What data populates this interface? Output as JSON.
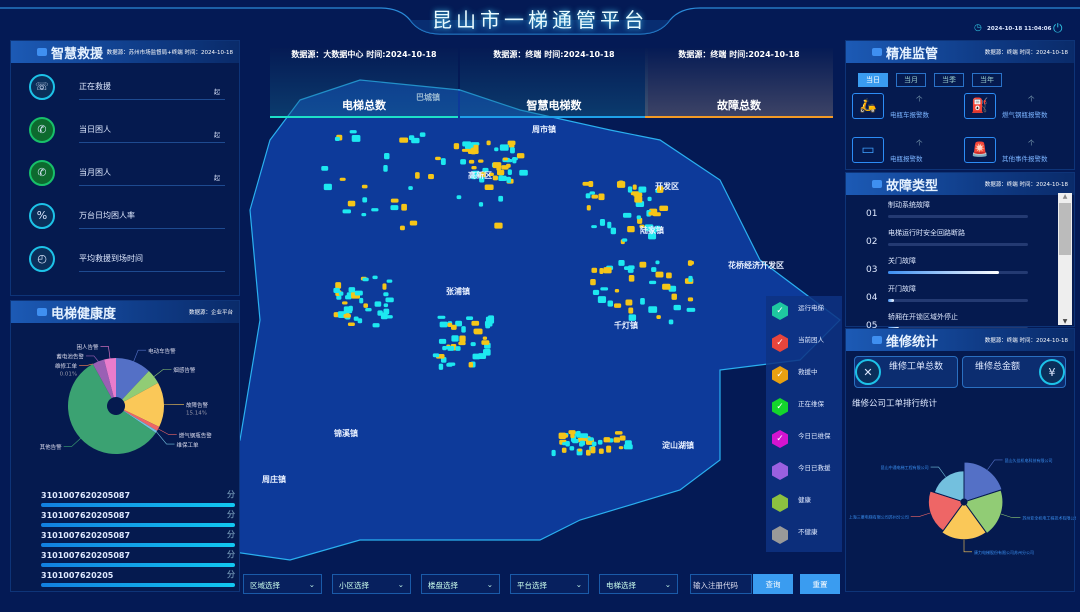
{
  "header": {
    "title": "昆山市一梯通管平台",
    "datetime": "2024-10-18 11:04:06",
    "clock_icon": "clock-icon",
    "power_icon": "power-icon"
  },
  "kpis": [
    {
      "source": "数据源：大数据中心 时间:2024-10-18",
      "label": "电梯总数",
      "color": "#1de0c8"
    },
    {
      "source": "数据源：终端 时间:2024-10-18",
      "label": "智慧电梯数",
      "color": "#1fa0e8"
    },
    {
      "source": "数据源：终端 时间:2024-10-18",
      "label": "故障总数",
      "color": "#f39a25"
    }
  ],
  "rescue": {
    "title": "智慧救援",
    "source": "数据源：苏州市场监督局+终端 时间：2024-10-18",
    "items": [
      {
        "label": "正在救援",
        "unit": "起",
        "icon": "rescue-icon"
      },
      {
        "label": "当日困人",
        "unit": "起",
        "icon": "phone-icon"
      },
      {
        "label": "当月困人",
        "unit": "起",
        "icon": "phone-icon"
      },
      {
        "label": "万台日均困人率",
        "unit": "",
        "icon": "percent-icon"
      },
      {
        "label": "平均救援到场时间",
        "unit": "",
        "icon": "stopwatch-icon"
      }
    ]
  },
  "health": {
    "title": "电梯健康度",
    "source": "数据源：企业平台",
    "rows": [
      {
        "code": "3101007620205087"
      },
      {
        "code": "3101007620205087"
      },
      {
        "code": "3101007620205087"
      },
      {
        "code": "3101007620205087"
      },
      {
        "code": "3101007620205"
      }
    ],
    "score_unit": "分"
  },
  "chart_data": [
    {
      "type": "pie",
      "title": "",
      "slices": [
        {
          "name": "电动车告警",
          "value": 12,
          "color": "#5470c6"
        },
        {
          "name": "烟感告警",
          "value": 5,
          "color": "#91cc75"
        },
        {
          "name": "故障告警",
          "value": 15.14,
          "label": "15.14%",
          "color": "#fac858"
        },
        {
          "name": "燃气钢瓶告警",
          "value": 1.5,
          "color": "#ee6666"
        },
        {
          "name": "维保工单",
          "value": 0.8,
          "color": "#73c0de"
        },
        {
          "name": "其他告警",
          "value": 57.5,
          "color": "#3ba272"
        },
        {
          "name": "维修工单",
          "value": 0.01,
          "label": "0.01%",
          "color": "#fc8452"
        },
        {
          "name": "蓄电池告警",
          "value": 4,
          "color": "#9a60b4"
        },
        {
          "name": "困人告警",
          "value": 4,
          "color": "#ea7ccc"
        }
      ]
    },
    {
      "type": "pie",
      "subtype": "rose",
      "title": "维修公司工单排行统计",
      "slices": [
        {
          "name": "昆山久佳机电科技有限公司",
          "value": 10,
          "color": "#5470c6"
        },
        {
          "name": "苏州亚全机电工程技术有限公司",
          "value": 9.5,
          "color": "#91cc75"
        },
        {
          "name": "康力电梯股份有限公司苏州分公司",
          "value": 9,
          "color": "#fac858"
        },
        {
          "name": "上海三菱电梯有限公司苏州分公司",
          "value": 8,
          "color": "#ee6666"
        },
        {
          "name": "昆山中通电梯工程有限公司",
          "value": 6,
          "color": "#73c0de"
        }
      ]
    }
  ],
  "map": {
    "towns": [
      "巴城镇",
      "周市镇",
      "高新区",
      "开发区",
      "陆家镇",
      "花桥经济开发区",
      "张浦镇",
      "千灯镇",
      "锦溪镇",
      "淀山湖镇",
      "周庄镇"
    ],
    "legend": [
      {
        "label": "运行电梯",
        "color": "#1ec8a0"
      },
      {
        "label": "当前困人",
        "color": "#e8453c"
      },
      {
        "label": "救援中",
        "color": "#e8a010"
      },
      {
        "label": "正在维保",
        "color": "#14d62c"
      },
      {
        "label": "今日已维保",
        "color": "#d414d0"
      },
      {
        "label": "今日已救援",
        "color": "#9a60e0"
      },
      {
        "label": "健康",
        "color": "#8cc040"
      },
      {
        "label": "不健康",
        "color": "#999999"
      }
    ]
  },
  "filters": {
    "selects": [
      "区域选择",
      "小区选择",
      "楼盘选择",
      "平台选择",
      "电梯选择"
    ],
    "code_placeholder": "输入注册代码",
    "query": "查询",
    "reset": "重置"
  },
  "monitor": {
    "title": "精准监管",
    "source": "数据源：终端 时间：2024-10-18",
    "tabs": [
      "当日",
      "当月",
      "当季",
      "当年"
    ],
    "active_tab": 0,
    "unit": "个",
    "items": [
      {
        "label": "电瓶车报警数",
        "icon": "scooter-icon"
      },
      {
        "label": "燃气钢瓶报警数",
        "icon": "gas-cylinder-icon"
      },
      {
        "label": "电瓶报警数",
        "icon": "battery-icon"
      },
      {
        "label": "其他事件报警数",
        "icon": "alarm-light-icon"
      }
    ]
  },
  "faults": {
    "title": "故障类型",
    "source": "数据源：终端 时间：2024-10-18",
    "items": [
      {
        "no": "01",
        "label": "制动系统故障",
        "pct": 0
      },
      {
        "no": "02",
        "label": "电梯运行时安全回路断路",
        "pct": 0
      },
      {
        "no": "03",
        "label": "关门故障",
        "pct": 79
      },
      {
        "no": "04",
        "label": "开门故障",
        "pct": 4
      },
      {
        "no": "05",
        "label": "轿厢在开锁区域外停止",
        "pct": 8
      }
    ]
  },
  "repair": {
    "title": "维修统计",
    "source": "数据源：终端 时间：2024-10-18",
    "orders_label": "维修工单总数",
    "amount_label": "维修总金额"
  }
}
